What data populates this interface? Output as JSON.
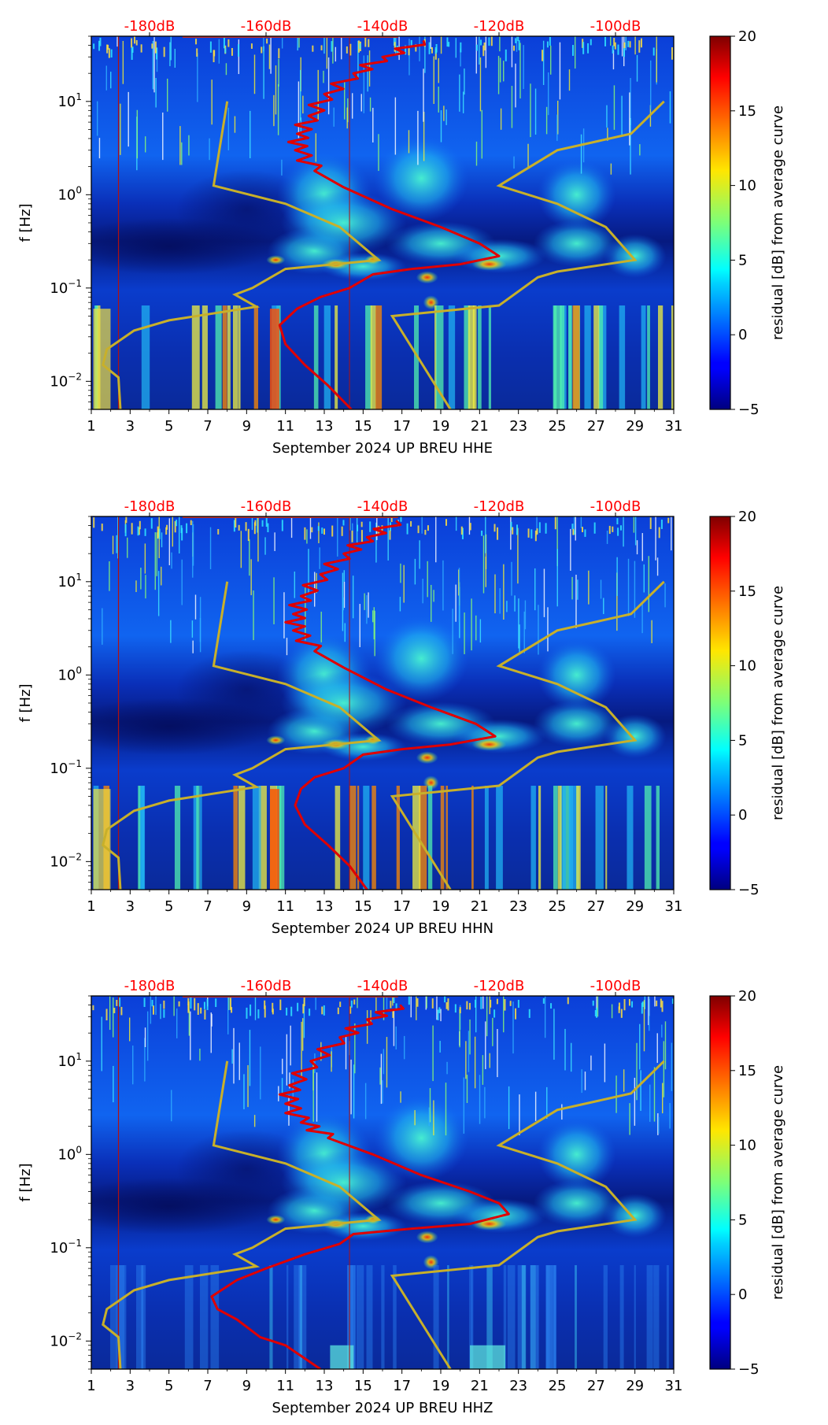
{
  "colors": {
    "top_labels": "#ff0000",
    "red_curve": "#e00000",
    "noise_model": "#c8b02a",
    "vline": "#b01010"
  },
  "chart_data": [
    {
      "type": "heatmap",
      "title": "",
      "xlabel": "September 2024 UP BREU  HHE",
      "ylabel": "f [Hz]",
      "xlim": [
        1,
        31
      ],
      "ylim": [
        0.005,
        50
      ],
      "yscale": "log",
      "xticks": [
        1,
        3,
        5,
        7,
        9,
        11,
        13,
        15,
        17,
        19,
        21,
        23,
        25,
        27,
        29,
        31
      ],
      "yticks": [
        {
          "value": 0.01,
          "base": "10",
          "exp": "−2"
        },
        {
          "value": 0.1,
          "base": "10",
          "exp": "−1"
        },
        {
          "value": 1,
          "base": "10",
          "exp": "0"
        },
        {
          "value": 10,
          "base": "10",
          "exp": "1"
        }
      ],
      "top_axis_labels": [
        {
          "label": "-180dB",
          "day": 4.0
        },
        {
          "label": "-160dB",
          "day": 10.0
        },
        {
          "label": "-140dB",
          "day": 16.0
        },
        {
          "label": "-120dB",
          "day": 22.0
        },
        {
          "label": "-100dB",
          "day": 28.0
        }
      ],
      "colorbar": {
        "label": "residual [dB] from average curve",
        "min": -5,
        "max": 20,
        "ticks": [
          "−5",
          "0",
          "5",
          "10",
          "15",
          "20"
        ]
      },
      "lower_noise_model": [
        [
          8.0,
          10
        ],
        [
          7.3,
          1.25
        ],
        [
          11.0,
          0.8
        ],
        [
          13.8,
          0.45
        ],
        [
          15.8,
          0.2
        ],
        [
          11.0,
          0.16
        ],
        [
          9.3,
          0.1
        ],
        [
          8.4,
          0.085
        ],
        [
          9.5,
          0.063
        ],
        [
          5.0,
          0.045
        ],
        [
          3.2,
          0.035
        ],
        [
          1.8,
          0.022
        ],
        [
          1.6,
          0.015
        ],
        [
          2.4,
          0.011
        ],
        [
          2.5,
          0.005
        ]
      ],
      "upper_noise_model": [
        [
          30.5,
          10
        ],
        [
          28.8,
          4.5
        ],
        [
          25.0,
          3.0
        ],
        [
          22.0,
          1.25
        ],
        [
          25.0,
          0.8
        ],
        [
          27.5,
          0.45
        ],
        [
          29.0,
          0.2
        ],
        [
          25.0,
          0.15
        ],
        [
          24.0,
          0.13
        ],
        [
          22.0,
          0.065
        ],
        [
          16.5,
          0.05
        ],
        [
          19.5,
          0.005
        ]
      ],
      "mean_psd_curve": [
        [
          18.1,
          45
        ],
        [
          16.0,
          30
        ],
        [
          14.5,
          20
        ],
        [
          13.0,
          12
        ],
        [
          12.2,
          7
        ],
        [
          11.6,
          4.5
        ],
        [
          11.5,
          3.0
        ],
        [
          12.5,
          1.8
        ],
        [
          14.0,
          1.2
        ],
        [
          16.5,
          0.7
        ],
        [
          19.0,
          0.45
        ],
        [
          21.0,
          0.3
        ],
        [
          22.0,
          0.22
        ],
        [
          20.0,
          0.18
        ],
        [
          17.5,
          0.16
        ],
        [
          15.5,
          0.14
        ],
        [
          14.3,
          0.1
        ],
        [
          12.8,
          0.08
        ],
        [
          11.6,
          0.06
        ],
        [
          10.7,
          0.04
        ],
        [
          11.0,
          0.025
        ],
        [
          12.0,
          0.015
        ],
        [
          13.2,
          0.009
        ],
        [
          14.4,
          0.005
        ]
      ]
    },
    {
      "type": "heatmap",
      "title": "",
      "xlabel": "September 2024 UP BREU  HHN",
      "ylabel": "f [Hz]",
      "xlim": [
        1,
        31
      ],
      "ylim": [
        0.005,
        50
      ],
      "yscale": "log",
      "xticks": [
        1,
        3,
        5,
        7,
        9,
        11,
        13,
        15,
        17,
        19,
        21,
        23,
        25,
        27,
        29,
        31
      ],
      "yticks": [
        {
          "value": 0.01,
          "base": "10",
          "exp": "−2"
        },
        {
          "value": 0.1,
          "base": "10",
          "exp": "−1"
        },
        {
          "value": 1,
          "base": "10",
          "exp": "0"
        },
        {
          "value": 10,
          "base": "10",
          "exp": "1"
        }
      ],
      "top_axis_labels": [
        {
          "label": "-180dB",
          "day": 4.0
        },
        {
          "label": "-160dB",
          "day": 10.0
        },
        {
          "label": "-140dB",
          "day": 16.0
        },
        {
          "label": "-120dB",
          "day": 22.0
        },
        {
          "label": "-100dB",
          "day": 28.0
        }
      ],
      "colorbar": {
        "label": "residual [dB] from average curve",
        "min": -5,
        "max": 20,
        "ticks": [
          "−5",
          "0",
          "5",
          "10",
          "15",
          "20"
        ]
      },
      "lower_noise_model": [
        [
          8.0,
          10
        ],
        [
          7.3,
          1.25
        ],
        [
          11.0,
          0.8
        ],
        [
          13.8,
          0.45
        ],
        [
          15.8,
          0.2
        ],
        [
          11.0,
          0.16
        ],
        [
          9.3,
          0.1
        ],
        [
          8.4,
          0.085
        ],
        [
          9.5,
          0.063
        ],
        [
          5.0,
          0.045
        ],
        [
          3.2,
          0.035
        ],
        [
          1.8,
          0.022
        ],
        [
          1.6,
          0.015
        ],
        [
          2.4,
          0.011
        ],
        [
          2.5,
          0.005
        ]
      ],
      "upper_noise_model": [
        [
          30.5,
          10
        ],
        [
          28.8,
          4.5
        ],
        [
          25.0,
          3.0
        ],
        [
          22.0,
          1.25
        ],
        [
          25.0,
          0.8
        ],
        [
          27.5,
          0.45
        ],
        [
          29.0,
          0.2
        ],
        [
          25.0,
          0.15
        ],
        [
          24.0,
          0.13
        ],
        [
          22.0,
          0.065
        ],
        [
          16.5,
          0.05
        ],
        [
          19.5,
          0.005
        ]
      ],
      "mean_psd_curve": [
        [
          16.7,
          45
        ],
        [
          15.2,
          30
        ],
        [
          14.0,
          20
        ],
        [
          12.8,
          12
        ],
        [
          11.8,
          7
        ],
        [
          11.4,
          4.5
        ],
        [
          11.4,
          3.0
        ],
        [
          12.5,
          1.8
        ],
        [
          14.0,
          1.2
        ],
        [
          16.2,
          0.7
        ],
        [
          18.5,
          0.45
        ],
        [
          20.8,
          0.3
        ],
        [
          21.8,
          0.22
        ],
        [
          19.5,
          0.18
        ],
        [
          17.0,
          0.16
        ],
        [
          15.0,
          0.14
        ],
        [
          14.0,
          0.1
        ],
        [
          12.5,
          0.08
        ],
        [
          11.8,
          0.06
        ],
        [
          11.5,
          0.04
        ],
        [
          12.0,
          0.025
        ],
        [
          13.2,
          0.015
        ],
        [
          14.3,
          0.009
        ],
        [
          15.2,
          0.005
        ]
      ]
    },
    {
      "type": "heatmap",
      "title": "",
      "xlabel": "September 2024 UP BREU  HHZ",
      "ylabel": "f [Hz]",
      "xlim": [
        1,
        31
      ],
      "ylim": [
        0.005,
        50
      ],
      "yscale": "log",
      "xticks": [
        1,
        3,
        5,
        7,
        9,
        11,
        13,
        15,
        17,
        19,
        21,
        23,
        25,
        27,
        29,
        31
      ],
      "yticks": [
        {
          "value": 0.01,
          "base": "10",
          "exp": "−2"
        },
        {
          "value": 0.1,
          "base": "10",
          "exp": "−1"
        },
        {
          "value": 1,
          "base": "10",
          "exp": "0"
        },
        {
          "value": 10,
          "base": "10",
          "exp": "1"
        }
      ],
      "top_axis_labels": [
        {
          "label": "-180dB",
          "day": 4.0
        },
        {
          "label": "-160dB",
          "day": 10.0
        },
        {
          "label": "-140dB",
          "day": 16.0
        },
        {
          "label": "-120dB",
          "day": 22.0
        },
        {
          "label": "-100dB",
          "day": 28.0
        }
      ],
      "colorbar": {
        "label": "residual [dB] from average curve",
        "min": -5,
        "max": 20,
        "ticks": [
          "−5",
          "0",
          "5",
          "10",
          "15",
          "20"
        ]
      },
      "lower_noise_model": [
        [
          8.0,
          10
        ],
        [
          7.3,
          1.25
        ],
        [
          11.0,
          0.8
        ],
        [
          13.8,
          0.45
        ],
        [
          15.8,
          0.2
        ],
        [
          11.0,
          0.16
        ],
        [
          9.3,
          0.1
        ],
        [
          8.4,
          0.085
        ],
        [
          9.5,
          0.063
        ],
        [
          5.0,
          0.045
        ],
        [
          3.2,
          0.035
        ],
        [
          1.8,
          0.022
        ],
        [
          1.6,
          0.015
        ],
        [
          2.4,
          0.011
        ],
        [
          2.5,
          0.005
        ]
      ],
      "upper_noise_model": [
        [
          30.5,
          10
        ],
        [
          28.8,
          4.5
        ],
        [
          25.0,
          3.0
        ],
        [
          22.0,
          1.25
        ],
        [
          25.0,
          0.8
        ],
        [
          27.5,
          0.45
        ],
        [
          29.0,
          0.2
        ],
        [
          25.0,
          0.15
        ],
        [
          24.0,
          0.13
        ],
        [
          22.0,
          0.065
        ],
        [
          16.5,
          0.05
        ],
        [
          19.5,
          0.005
        ]
      ],
      "mean_psd_curve": [
        [
          16.9,
          40
        ],
        [
          15.2,
          28
        ],
        [
          13.8,
          18
        ],
        [
          12.3,
          10
        ],
        [
          11.2,
          5.5
        ],
        [
          11.0,
          3.5
        ],
        [
          11.8,
          2.2
        ],
        [
          13.2,
          1.5
        ],
        [
          15.5,
          1.0
        ],
        [
          18.0,
          0.6
        ],
        [
          20.5,
          0.4
        ],
        [
          22.0,
          0.3
        ],
        [
          22.5,
          0.23
        ],
        [
          20.5,
          0.18
        ],
        [
          17.5,
          0.16
        ],
        [
          14.5,
          0.14
        ],
        [
          13.8,
          0.11
        ],
        [
          12.0,
          0.085
        ],
        [
          10.0,
          0.06
        ],
        [
          8.5,
          0.045
        ],
        [
          7.2,
          0.03
        ],
        [
          7.5,
          0.022
        ],
        [
          8.5,
          0.017
        ],
        [
          9.7,
          0.011
        ],
        [
          11.0,
          0.009
        ],
        [
          12.8,
          0.005
        ]
      ]
    }
  ]
}
